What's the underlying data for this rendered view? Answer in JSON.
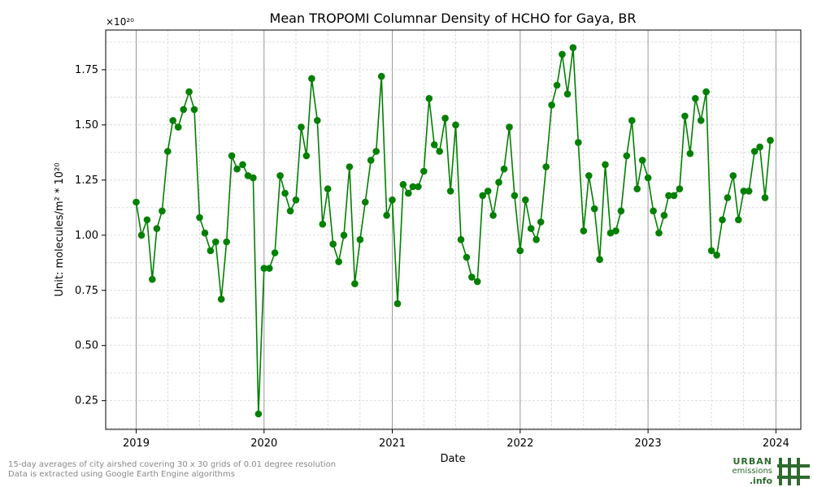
{
  "chart_data": {
    "type": "line",
    "title": "Mean TROPOMI Columnar Density of HCHO for Gaya, BR",
    "xlabel": "Date",
    "ylabel": "Unit: molecules/m² * 10²⁰",
    "y_offset_label": "×10²⁰",
    "ylim": [
      0.12,
      1.93
    ],
    "xlim": [
      "2018-10-06",
      "2024-03-12"
    ],
    "yticks": [
      0.25,
      0.5,
      0.75,
      1.0,
      1.25,
      1.5,
      1.75
    ],
    "ytick_labels": [
      "0.25",
      "0.50",
      "0.75",
      "1.00",
      "1.25",
      "1.50",
      "1.75"
    ],
    "xticks": [
      "2019-01-01",
      "2020-01-01",
      "2021-01-01",
      "2022-01-01",
      "2023-01-01",
      "2024-01-01"
    ],
    "xtick_labels": [
      "2019",
      "2020",
      "2021",
      "2022",
      "2023",
      "2024"
    ],
    "grid": true,
    "line_color": "#008000",
    "marker_color": "#008000",
    "x": [
      "2019-01-01",
      "2019-01-16",
      "2019-02-01",
      "2019-02-16",
      "2019-03-01",
      "2019-03-16",
      "2019-04-01",
      "2019-04-16",
      "2019-05-01",
      "2019-05-16",
      "2019-06-01",
      "2019-06-16",
      "2019-07-01",
      "2019-07-16",
      "2019-08-01",
      "2019-08-16",
      "2019-09-01",
      "2019-09-16",
      "2019-10-01",
      "2019-10-16",
      "2019-11-01",
      "2019-11-16",
      "2019-12-01",
      "2019-12-16",
      "2020-01-01",
      "2020-01-16",
      "2020-02-01",
      "2020-02-16",
      "2020-03-01",
      "2020-03-16",
      "2020-04-01",
      "2020-04-16",
      "2020-05-01",
      "2020-05-16",
      "2020-06-01",
      "2020-06-16",
      "2020-07-01",
      "2020-07-16",
      "2020-08-01",
      "2020-08-16",
      "2020-09-01",
      "2020-09-16",
      "2020-10-01",
      "2020-10-16",
      "2020-11-01",
      "2020-11-16",
      "2020-12-01",
      "2020-12-16",
      "2021-01-01",
      "2021-01-16",
      "2021-02-01",
      "2021-02-16",
      "2021-03-01",
      "2021-03-16",
      "2021-04-01",
      "2021-04-16",
      "2021-05-01",
      "2021-05-16",
      "2021-06-01",
      "2021-06-16",
      "2021-07-01",
      "2021-07-16",
      "2021-08-01",
      "2021-08-16",
      "2021-09-01",
      "2021-09-16",
      "2021-10-01",
      "2021-10-16",
      "2021-11-01",
      "2021-11-16",
      "2021-12-01",
      "2021-12-16",
      "2022-01-01",
      "2022-01-16",
      "2022-02-01",
      "2022-02-16",
      "2022-03-01",
      "2022-03-16",
      "2022-04-01",
      "2022-04-16",
      "2022-05-01",
      "2022-05-16",
      "2022-06-01",
      "2022-06-16",
      "2022-07-01",
      "2022-07-16",
      "2022-08-01",
      "2022-08-16",
      "2022-09-01",
      "2022-09-16",
      "2022-10-01",
      "2022-10-16",
      "2022-11-01",
      "2022-11-16",
      "2022-12-01",
      "2022-12-16",
      "2023-01-01",
      "2023-01-16",
      "2023-02-01",
      "2023-02-16",
      "2023-03-01",
      "2023-03-16",
      "2023-04-01",
      "2023-04-16",
      "2023-05-01",
      "2023-05-16",
      "2023-06-01",
      "2023-06-16",
      "2023-07-01",
      "2023-07-16",
      "2023-08-01",
      "2023-08-16",
      "2023-09-01",
      "2023-09-16",
      "2023-10-01",
      "2023-10-16",
      "2023-11-01",
      "2023-11-16",
      "2023-12-01",
      "2023-12-16"
    ],
    "series": [
      {
        "values": [
          1.15,
          1.0,
          1.07,
          0.8,
          1.03,
          1.11,
          1.38,
          1.52,
          1.49,
          1.57,
          1.65,
          1.57,
          1.08,
          1.01,
          0.93,
          0.97,
          0.71,
          0.97,
          1.36,
          1.3,
          1.32,
          1.27,
          1.26,
          0.19,
          0.85,
          0.85,
          0.92,
          1.27,
          1.19,
          1.11,
          1.16,
          1.49,
          1.36,
          1.71,
          1.52,
          1.05,
          1.21,
          0.96,
          0.88,
          1.0,
          1.31,
          0.78,
          0.98,
          1.15,
          1.34,
          1.38,
          1.72,
          1.09,
          1.16,
          0.69,
          1.23,
          1.19,
          1.22,
          1.22,
          1.29,
          1.62,
          1.41,
          1.38,
          1.53,
          1.2,
          1.5,
          0.98,
          0.9,
          0.81,
          0.79,
          1.18,
          1.2,
          1.09,
          1.24,
          1.3,
          1.49,
          1.18,
          0.93,
          1.16,
          1.03,
          0.98,
          1.06,
          1.31,
          1.59,
          1.68,
          1.82,
          1.64,
          1.85,
          1.42,
          1.02,
          1.27,
          1.12,
          0.89,
          1.32,
          1.01,
          1.02,
          1.11,
          1.36,
          1.52,
          1.21,
          1.34,
          1.26,
          1.11,
          1.01,
          1.09,
          1.18,
          1.18,
          1.21,
          1.54,
          1.37,
          1.62,
          1.52,
          1.65,
          0.93,
          0.91,
          1.07,
          1.17,
          1.27,
          1.07,
          1.2,
          1.2,
          1.38,
          1.4,
          1.17,
          1.43
        ]
      }
    ]
  },
  "footnote": {
    "line1": "15-day averages of city airshed covering 30 x 30 grids of 0.01 degree resolution",
    "line2": "Data is extracted using Google Earth Engine algorithms"
  },
  "logo": {
    "line1": "URBAN",
    "line2": "emissions",
    "line3": ".info",
    "color": "#2e6b2e"
  }
}
